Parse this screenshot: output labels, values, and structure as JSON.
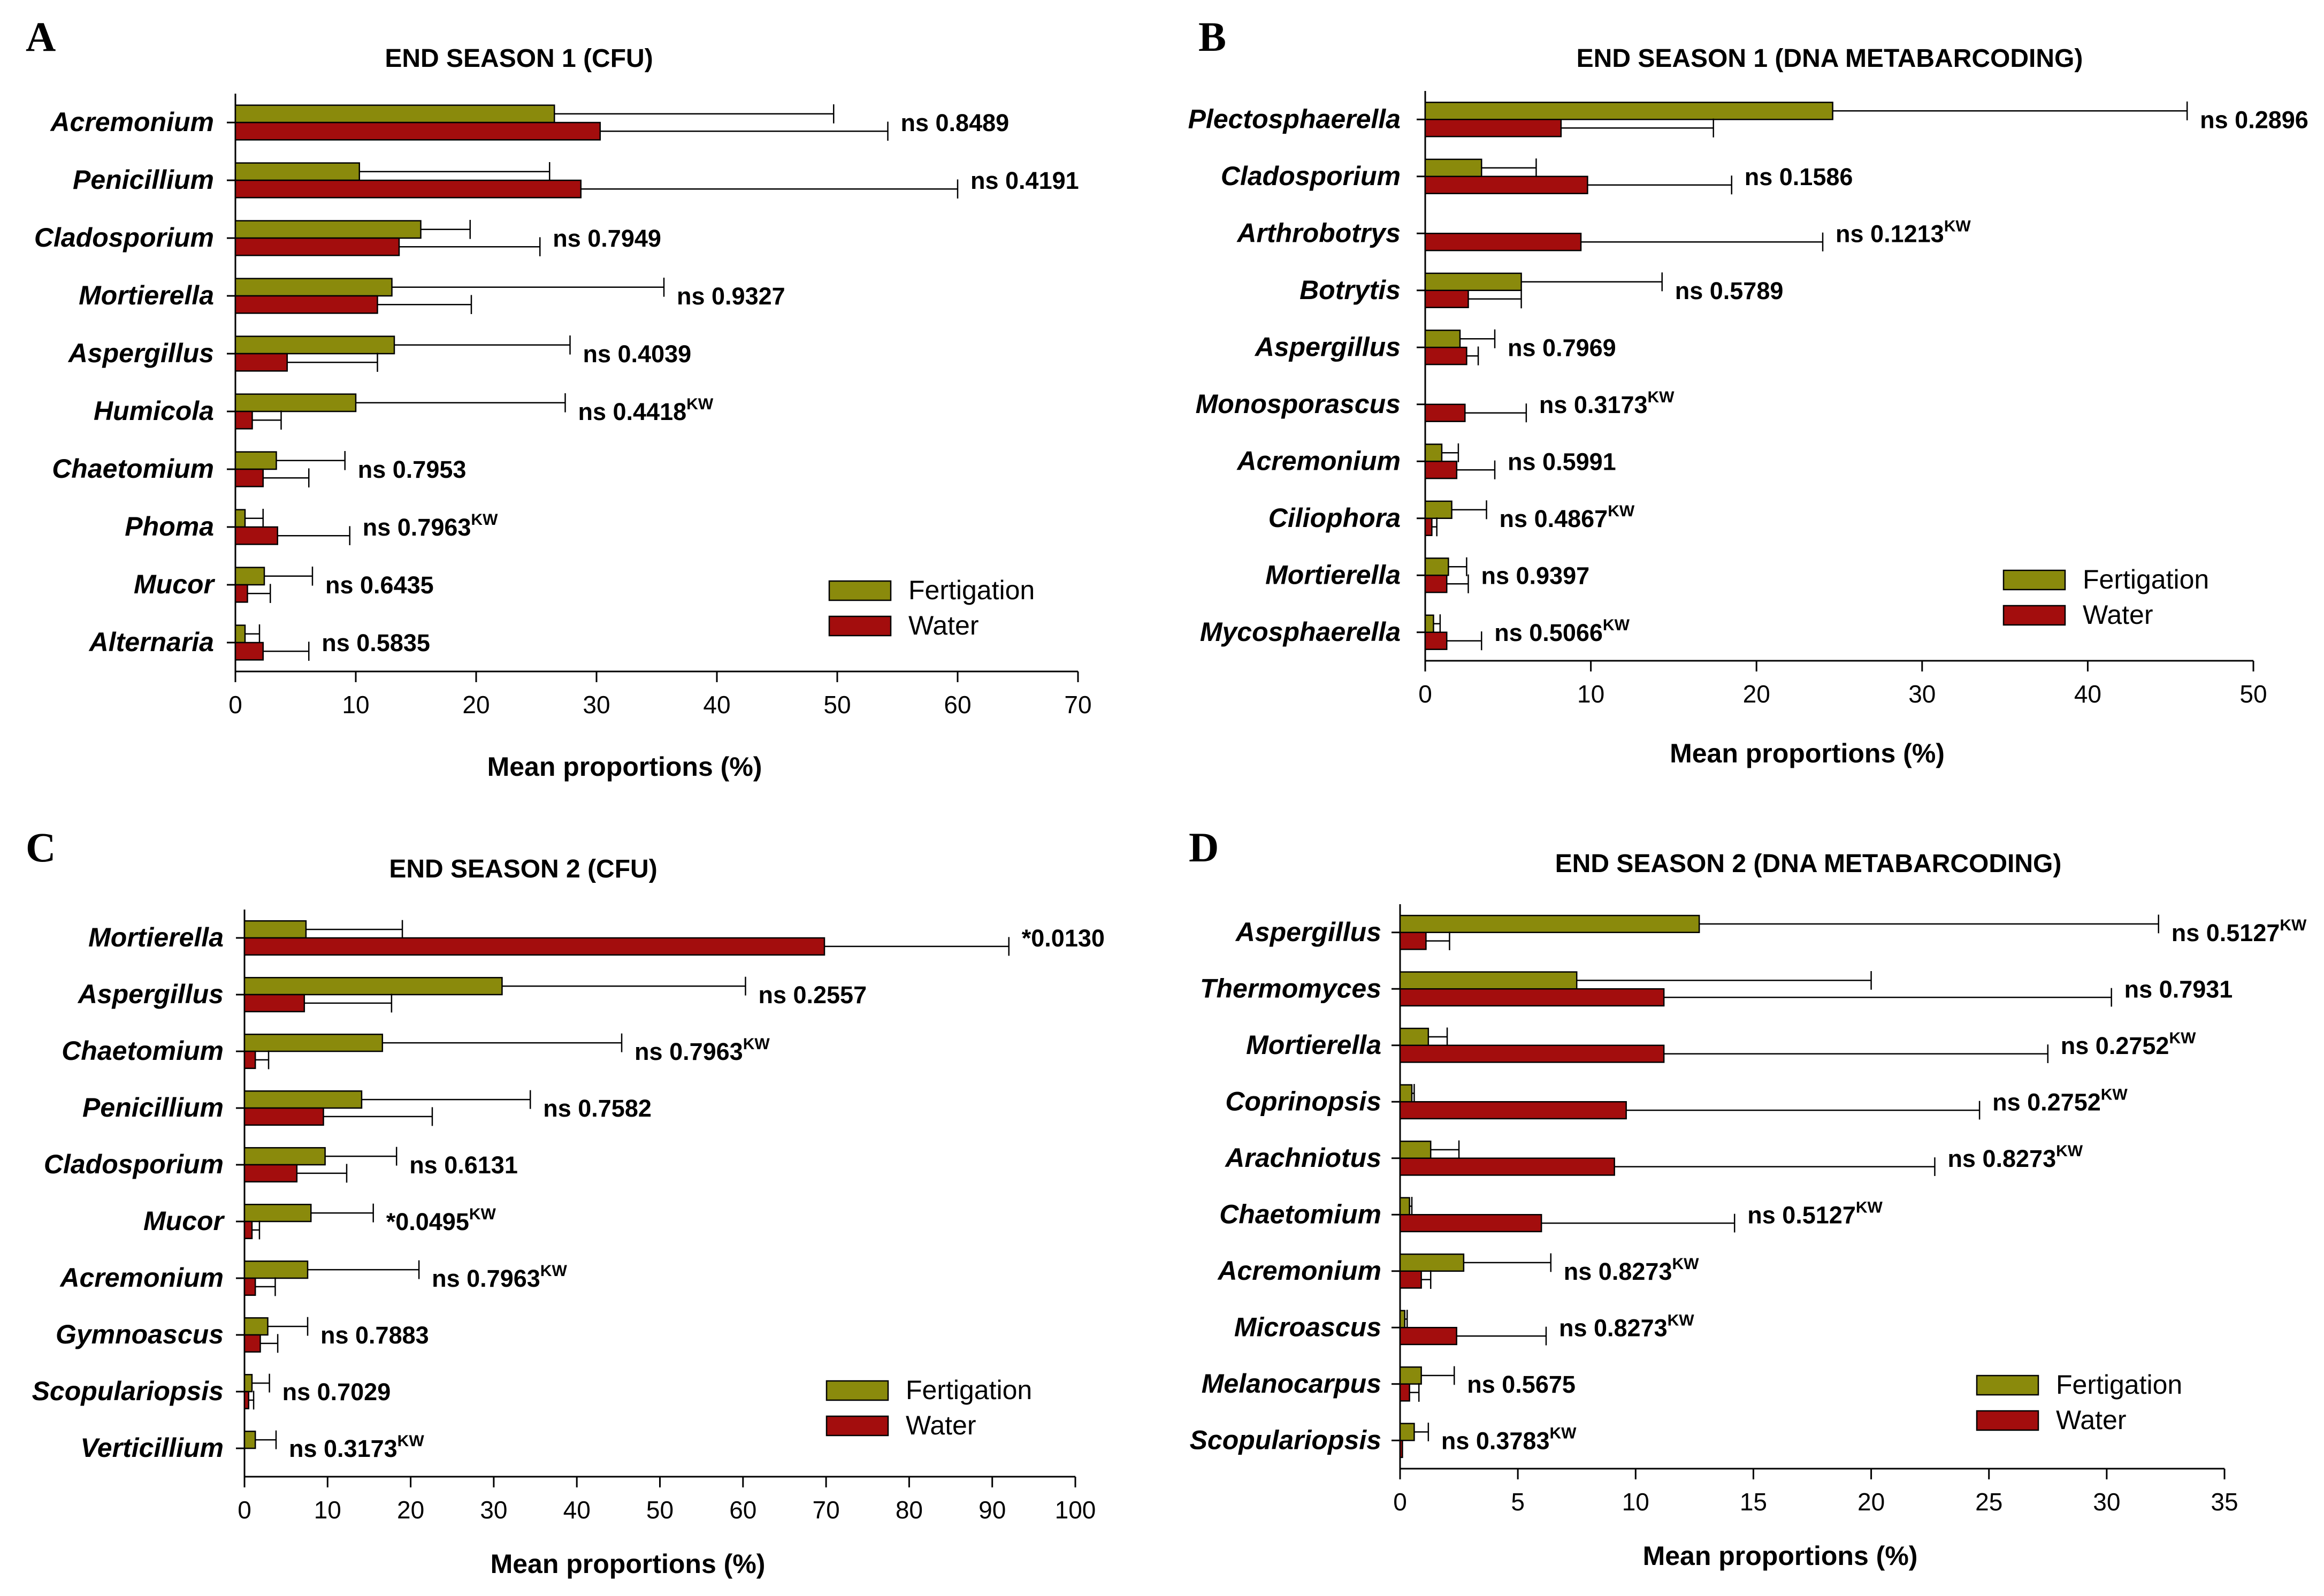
{
  "colors": {
    "fertigation": "#8a8a0c",
    "water": "#a30d0d"
  },
  "chart_data": [
    {
      "type": "bar",
      "panel": "A",
      "title": "END SEASON 1 (CFU)",
      "xlabel": "Mean proportions (%)",
      "xlim": [
        0,
        70
      ],
      "ticks": [
        0,
        10,
        20,
        30,
        40,
        50,
        60,
        70
      ],
      "categories": [
        "Acremonium",
        "Penicillium",
        "Cladosporium",
        "Mortierella",
        "Aspergillus",
        "Humicola",
        "Chaetomium",
        "Phoma",
        "Mucor",
        "Alternaria"
      ],
      "series": [
        {
          "name": "Fertigation",
          "values": [
            26.5,
            10.3,
            15.4,
            13.0,
            13.2,
            10.0,
            3.4,
            0.8,
            2.4,
            0.8
          ],
          "errors": [
            23.2,
            15.8,
            4.1,
            22.6,
            14.6,
            17.4,
            5.7,
            1.5,
            4.0,
            1.2
          ]
        },
        {
          "name": "Water",
          "values": [
            30.3,
            28.7,
            13.6,
            11.8,
            4.3,
            1.4,
            2.3,
            3.5,
            1.0,
            2.3
          ],
          "errors": [
            23.9,
            31.3,
            11.7,
            7.8,
            7.5,
            2.4,
            3.8,
            6.0,
            1.9,
            3.8
          ]
        }
      ],
      "annotations": [
        {
          "p": "ns 0.8489",
          "kw": ""
        },
        {
          "p": "ns 0.4191",
          "kw": ""
        },
        {
          "p": "ns 0.7949",
          "kw": ""
        },
        {
          "p": "ns 0.9327",
          "kw": ""
        },
        {
          "p": "ns 0.4039",
          "kw": ""
        },
        {
          "p": "ns 0.4418",
          "kw": "KW"
        },
        {
          "p": "ns 0.7953",
          "kw": ""
        },
        {
          "p": "ns 0.7963",
          "kw": "KW"
        },
        {
          "p": "ns 0.6435",
          "kw": ""
        },
        {
          "p": "ns 0.5835",
          "kw": ""
        }
      ],
      "legend": [
        "Fertigation",
        "Water"
      ]
    },
    {
      "type": "bar",
      "panel": "B",
      "title": "END SEASON 1 (DNA METABARCODING)",
      "xlabel": "Mean proportions (%)",
      "xlim": [
        0,
        50
      ],
      "ticks": [
        0,
        10,
        20,
        30,
        40,
        50
      ],
      "categories": [
        "Plectosphaerella",
        "Cladosporium",
        "Arthrobotrys",
        "Botrytis",
        "Aspergillus",
        "Monosporascus",
        "Acremonium",
        "Ciliophora",
        "Mortierella",
        "Mycosphaerella"
      ],
      "series": [
        {
          "name": "Fertigation",
          "values": [
            24.6,
            3.4,
            0.0,
            5.8,
            2.1,
            0.0,
            1.0,
            1.6,
            1.4,
            0.5
          ],
          "errors": [
            21.4,
            3.3,
            0.0,
            8.5,
            2.1,
            0.0,
            1.0,
            2.1,
            1.1,
            0.4
          ]
        },
        {
          "name": "Water",
          "values": [
            8.2,
            9.8,
            9.4,
            2.6,
            2.5,
            2.4,
            1.9,
            0.4,
            1.3,
            1.3
          ],
          "errors": [
            9.2,
            8.7,
            14.6,
            3.2,
            0.7,
            3.7,
            2.3,
            0.3,
            1.3,
            2.1
          ]
        }
      ],
      "annotations": [
        {
          "p": "ns 0.2896",
          "kw": ""
        },
        {
          "p": "ns 0.1586",
          "kw": ""
        },
        {
          "p": "ns 0.1213",
          "kw": "KW"
        },
        {
          "p": "ns 0.5789",
          "kw": ""
        },
        {
          "p": "ns 0.7969",
          "kw": ""
        },
        {
          "p": "ns 0.3173",
          "kw": "KW"
        },
        {
          "p": "ns 0.5991",
          "kw": ""
        },
        {
          "p": "ns 0.4867",
          "kw": "KW"
        },
        {
          "p": "ns 0.9397",
          "kw": ""
        },
        {
          "p": "ns 0.5066",
          "kw": "KW"
        }
      ],
      "legend": [
        "Fertigation",
        "Water"
      ]
    },
    {
      "type": "bar",
      "panel": "C",
      "title": "END SEASON 2 (CFU)",
      "xlabel": "Mean proportions (%)",
      "xlim": [
        0,
        100
      ],
      "ticks": [
        0,
        10,
        20,
        30,
        40,
        50,
        60,
        70,
        80,
        90,
        100
      ],
      "categories": [
        "Mortierella",
        "Aspergillus",
        "Chaetomium",
        "Penicillium",
        "Cladosporium",
        "Mucor",
        "Acremonium",
        "Gymnoascus",
        "Scopulariopsis",
        "Verticillium"
      ],
      "series": [
        {
          "name": "Fertigation",
          "values": [
            7.4,
            31.0,
            16.6,
            14.1,
            9.7,
            8.0,
            7.6,
            2.8,
            0.9,
            1.3
          ],
          "errors": [
            11.6,
            29.3,
            28.8,
            20.3,
            8.6,
            7.5,
            13.4,
            4.8,
            2.1,
            2.5
          ]
        },
        {
          "name": "Water",
          "values": [
            69.8,
            7.2,
            1.3,
            9.5,
            6.3,
            0.9,
            1.3,
            1.9,
            0.5,
            0.0
          ],
          "errors": [
            22.2,
            10.5,
            1.6,
            13.1,
            6.0,
            0.9,
            2.4,
            2.1,
            0.6,
            0.0
          ]
        }
      ],
      "annotations": [
        {
          "p": "*0.0130",
          "kw": ""
        },
        {
          "p": "ns 0.2557",
          "kw": ""
        },
        {
          "p": "ns 0.7963",
          "kw": "KW"
        },
        {
          "p": "ns 0.7582",
          "kw": ""
        },
        {
          "p": "ns 0.6131",
          "kw": ""
        },
        {
          "p": "*0.0495",
          "kw": "KW"
        },
        {
          "p": "ns 0.7963",
          "kw": "KW"
        },
        {
          "p": "ns 0.7883",
          "kw": ""
        },
        {
          "p": "ns 0.7029",
          "kw": ""
        },
        {
          "p": "ns 0.3173",
          "kw": "KW"
        }
      ],
      "legend": [
        "Fertigation",
        "Water"
      ]
    },
    {
      "type": "bar",
      "panel": "D",
      "title": "END SEASON 2 (DNA METABARCODING)",
      "xlabel": "Mean proportions (%)",
      "xlim": [
        0,
        35
      ],
      "ticks": [
        0,
        5,
        10,
        15,
        20,
        25,
        30,
        35
      ],
      "categories": [
        "Aspergillus",
        "Thermomyces",
        "Mortierella",
        "Coprinopsis",
        "Arachniotus",
        "Chaetomium",
        "Acremonium",
        "Microascus",
        "Melanocarpus",
        "Scopulariopsis"
      ],
      "series": [
        {
          "name": "Fertigation",
          "values": [
            12.7,
            7.5,
            1.2,
            0.5,
            1.3,
            0.4,
            2.7,
            0.2,
            0.9,
            0.6
          ],
          "errors": [
            19.5,
            12.5,
            0.8,
            0.1,
            1.2,
            0.1,
            3.7,
            0.1,
            1.4,
            0.6
          ]
        },
        {
          "name": "Water",
          "values": [
            1.1,
            11.2,
            11.2,
            9.6,
            9.1,
            6.0,
            0.9,
            2.4,
            0.4,
            0.1
          ],
          "errors": [
            1.0,
            19.0,
            16.3,
            15.0,
            13.6,
            8.2,
            0.4,
            3.8,
            0.4,
            0.0
          ]
        }
      ],
      "annotations": [
        {
          "p": "ns 0.5127",
          "kw": "KW"
        },
        {
          "p": "ns 0.7931",
          "kw": ""
        },
        {
          "p": "ns 0.2752",
          "kw": "KW"
        },
        {
          "p": "ns 0.2752",
          "kw": "KW"
        },
        {
          "p": "ns 0.8273",
          "kw": "KW"
        },
        {
          "p": "ns 0.5127",
          "kw": "KW"
        },
        {
          "p": "ns 0.8273",
          "kw": "KW"
        },
        {
          "p": "ns 0.8273",
          "kw": "KW"
        },
        {
          "p": "ns 0.5675",
          "kw": ""
        },
        {
          "p": "ns 0.3783",
          "kw": "KW"
        }
      ],
      "legend": [
        "Fertigation",
        "Water"
      ]
    }
  ]
}
